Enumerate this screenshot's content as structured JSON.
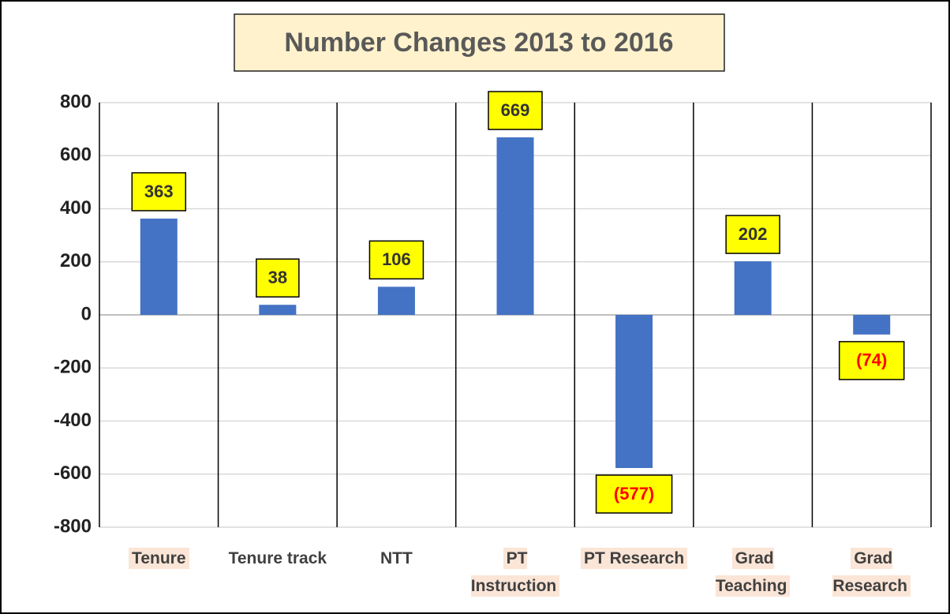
{
  "chart_data": {
    "type": "bar",
    "title": "Number Changes 2013 to 2016",
    "categories": [
      "Tenure",
      "Tenure track",
      "NTT",
      "PT Instruction",
      "PT Research",
      "Grad Teaching",
      "Grad Research"
    ],
    "category_highlight": [
      true,
      false,
      false,
      true,
      true,
      true,
      true
    ],
    "values": [
      363,
      38,
      106,
      669,
      -577,
      202,
      -74
    ],
    "value_labels": [
      "363",
      "38",
      "106",
      "669",
      "(577)",
      "202",
      "(74)"
    ],
    "color": "#4472c4",
    "ylim": [
      -800,
      800
    ],
    "yticks": [
      -800,
      -600,
      -400,
      -200,
      0,
      200,
      400,
      600,
      800
    ],
    "grid": true
  }
}
